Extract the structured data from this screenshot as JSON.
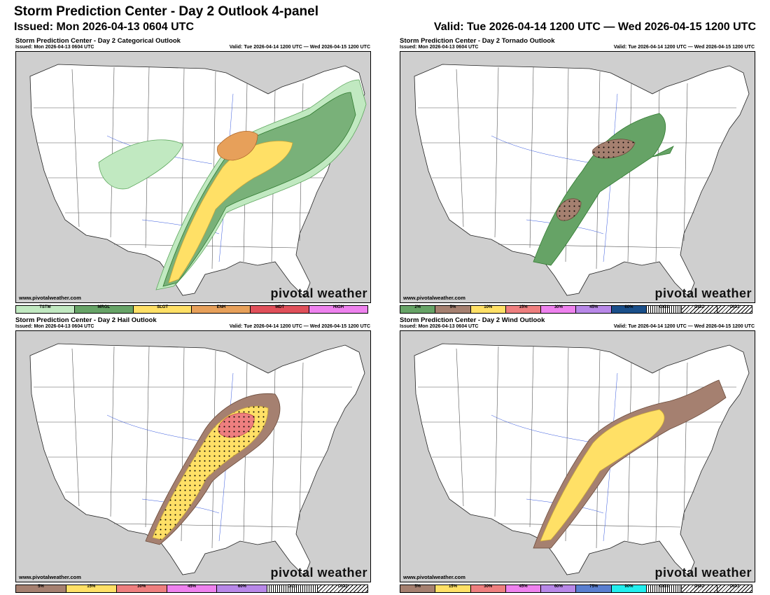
{
  "header": {
    "title": "Storm Prediction Center - Day 2 Outlook 4-panel",
    "issued": "Issued: Mon 2026-04-13 0604 UTC",
    "valid": "Valid: Tue 2026-04-14 1200 UTC — Wed 2026-04-15 1200 UTC"
  },
  "panels": [
    {
      "title": "Storm Prediction Center - Day 2 Categorical Outlook",
      "issued": "Issued: Mon 2026-04-13 0604 UTC",
      "valid": "Valid: Tue 2026-04-14 1200 UTC — Wed 2026-04-15 1200 UTC",
      "site": "www.pivotalweather.com",
      "brand": "pivotal weather",
      "legend": [
        {
          "label": "TSTM",
          "color": "#c1e9c1"
        },
        {
          "label": "MRGL",
          "color": "#66a366"
        },
        {
          "label": "SLGT",
          "color": "#ffe066"
        },
        {
          "label": "ENH",
          "color": "#e7a05a"
        },
        {
          "label": "MDT",
          "color": "#e0505a"
        },
        {
          "label": "HIGH",
          "color": "#ee82ee"
        }
      ]
    },
    {
      "title": "Storm Prediction Center - Day 2 Tornado Outlook",
      "issued": "Issued: Mon 2026-04-13 0604 UTC",
      "valid": "Valid: Tue 2026-04-14 1200 UTC — Wed 2026-04-15 1200 UTC",
      "site": "www.pivotalweather.com",
      "brand": "pivotal weather",
      "legend": [
        {
          "label": "2%",
          "color": "#66a366"
        },
        {
          "label": "5%",
          "color": "#a58070"
        },
        {
          "label": "10%",
          "color": "#ffe066"
        },
        {
          "label": "15%",
          "color": "#ee7f7f"
        },
        {
          "label": "30%",
          "color": "#ee82ee"
        },
        {
          "label": "45%",
          "color": "#b888e8"
        },
        {
          "label": "60%",
          "color": "#1a4f8a"
        },
        {
          "label": "CIG1",
          "color": "#ffffff"
        },
        {
          "label": "CIG2",
          "color": "#ffffff"
        },
        {
          "label": "CIG3",
          "color": "#ffffff"
        }
      ]
    },
    {
      "title": "Storm Prediction Center - Day 2 Hail Outlook",
      "issued": "Issued: Mon 2026-04-13 0604 UTC",
      "valid": "Valid: Tue 2026-04-14 1200 UTC — Wed 2026-04-15 1200 UTC",
      "site": "www.pivotalweather.com",
      "brand": "pivotal weather",
      "legend": [
        {
          "label": "5%",
          "color": "#a58070"
        },
        {
          "label": "15%",
          "color": "#ffe066"
        },
        {
          "label": "30%",
          "color": "#ee7f7f"
        },
        {
          "label": "45%",
          "color": "#ee82ee"
        },
        {
          "label": "60%",
          "color": "#b888e8"
        },
        {
          "label": "CIG1",
          "color": "#ffffff"
        },
        {
          "label": "CIG2",
          "color": "#ffffff"
        }
      ]
    },
    {
      "title": "Storm Prediction Center - Day 2 Wind Outlook",
      "issued": "Issued: Mon 2026-04-13 0604 UTC",
      "valid": "Valid: Tue 2026-04-14 1200 UTC — Wed 2026-04-15 1200 UTC",
      "site": "www.pivotalweather.com",
      "brand": "pivotal weather",
      "legend": [
        {
          "label": "5%",
          "color": "#a58070"
        },
        {
          "label": "15%",
          "color": "#ffe066"
        },
        {
          "label": "30%",
          "color": "#ee7f7f"
        },
        {
          "label": "45%",
          "color": "#ee82ee"
        },
        {
          "label": "60%",
          "color": "#b888e8"
        },
        {
          "label": "75%",
          "color": "#5a7fd0"
        },
        {
          "label": "90%",
          "color": "#22eeee"
        },
        {
          "label": "CIG1",
          "color": "#ffffff"
        },
        {
          "label": "CIG2",
          "color": "#ffffff"
        },
        {
          "label": "CIG3",
          "color": "#ffffff"
        }
      ]
    }
  ]
}
